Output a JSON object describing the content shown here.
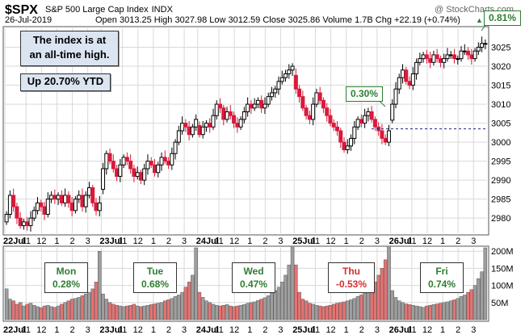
{
  "header": {
    "symbol": "$SPX",
    "name": "S&P 500 Large Cap Index",
    "exchange": "INDX",
    "watermark": "@ StockCharts.com",
    "date": "26-Jul-2019",
    "ohlc_text": "Open 3013.25  High 3027.98  Low 3012.59  Close 3025.86  Volume 1.7B  Chg +22.19 (+0.74%)",
    "change_arrow": "▲"
  },
  "callouts": {
    "all_time_high": [
      "The index is at",
      "an all-time high."
    ],
    "ytd": "Up 20.70% YTD",
    "pct_top": "0.81%",
    "pct_mid": "0.30%"
  },
  "days": [
    {
      "name": "Mon",
      "pct": "0.28%",
      "color": "#2e7d32"
    },
    {
      "name": "Tue",
      "pct": "0.68%",
      "color": "#2e7d32"
    },
    {
      "name": "Wed",
      "pct": "0.47%",
      "color": "#2e7d32"
    },
    {
      "name": "Thu",
      "pct": "-0.53%",
      "color": "#d32f2f"
    },
    {
      "name": "Fri",
      "pct": "0.74%",
      "color": "#2e7d32"
    }
  ],
  "chart_data": {
    "type": "candlestick",
    "title": "$SPX S&P 500 Large Cap Index INDX",
    "price_axis": {
      "min": 2976,
      "max": 3030,
      "ticks": [
        2980,
        2985,
        2990,
        2995,
        3000,
        3005,
        3010,
        3015,
        3020,
        3025
      ],
      "side": "right"
    },
    "volume_axis": {
      "max": 210,
      "ticks": [
        50,
        100,
        150,
        200
      ],
      "tick_labels": [
        "50M",
        "100M",
        "150M",
        "200M"
      ]
    },
    "x_tick_labels": [
      "22Jul",
      "11",
      "12",
      "1",
      "2",
      "3",
      "23Jul",
      "11",
      "12",
      "1",
      "2",
      "3",
      "24Jul",
      "11",
      "12",
      "1",
      "2",
      "3",
      "25Jul",
      "11",
      "12",
      "1",
      "2",
      "3",
      "26Jul",
      "11",
      "12",
      "1",
      "2",
      "3"
    ],
    "reference_line": {
      "value": 3003.5,
      "style": "dashed",
      "color": "#1a237e"
    },
    "colors": {
      "up": "#000000",
      "down": "#d81b3c",
      "volume_up": "#9e9e9e",
      "volume_down": "#e57373",
      "grid": "#d9d9d9"
    },
    "days": [
      {
        "day": "Mon 22Jul",
        "close_path": [
          2981,
          2986,
          2983,
          2980,
          2978,
          2979,
          2978,
          2980,
          2982,
          2984,
          2983,
          2981,
          2985,
          2986,
          2985,
          2986,
          2984,
          2986,
          2984,
          2982,
          2985,
          2986,
          2983,
          2986,
          2988,
          2984,
          2982,
          2984
        ]
      },
      {
        "day": "Tue 23Jul",
        "close_path": [
          2993,
          2997,
          2995,
          2993,
          2991,
          2994,
          2996,
          2995,
          2993,
          2991,
          2992,
          2990,
          2993,
          2995,
          2994,
          2992,
          2994,
          2996,
          2995,
          2994,
          2997,
          3000,
          3003,
          3005,
          3004,
          3002,
          3004,
          3006
        ]
      },
      {
        "day": "Wed 24Jul",
        "close_path": [
          3002,
          3004,
          3005,
          3004,
          3007,
          3010,
          3009,
          3006,
          3008,
          3007,
          3005,
          3004,
          3006,
          3008,
          3010,
          3009,
          3010,
          3011,
          3009,
          3010,
          3012,
          3013,
          3014,
          3016,
          3017,
          3018,
          3019,
          3020
        ]
      },
      {
        "day": "Thu 25Jul",
        "close_path": [
          3014,
          3012,
          3009,
          3007,
          3006,
          3010,
          3013,
          3011,
          3009,
          3007,
          3005,
          3004,
          3003,
          3000,
          2998,
          2999,
          3001,
          3004,
          3006,
          3005,
          3007,
          3008,
          3006,
          3004,
          3003,
          3001,
          3000,
          3003
        ]
      },
      {
        "day": "Fri 26Jul",
        "close_path": [
          3010,
          3014,
          3017,
          3019,
          3016,
          3015,
          3018,
          3021,
          3022,
          3023,
          3022,
          3021,
          3023,
          3022,
          3021,
          3022,
          3023,
          3023,
          3022,
          3022,
          3024,
          3024,
          3023,
          3022,
          3024,
          3025,
          3026,
          3026
        ]
      }
    ],
    "volume_millions": [
      [
        90,
        60,
        55,
        45,
        50,
        40,
        45,
        48,
        42,
        38,
        35,
        40,
        42,
        38,
        36,
        40,
        45,
        50,
        55,
        60,
        62,
        65,
        70,
        75,
        80,
        90,
        110,
        200
      ],
      [
        75,
        60,
        50,
        45,
        42,
        40,
        38,
        40,
        42,
        45,
        40,
        38,
        40,
        42,
        44,
        46,
        48,
        50,
        55,
        58,
        62,
        68,
        72,
        80,
        95,
        110,
        130,
        210
      ],
      [
        80,
        65,
        55,
        50,
        45,
        42,
        40,
        42,
        44,
        40,
        38,
        40,
        42,
        44,
        48,
        50,
        52,
        56,
        60,
        64,
        70,
        78,
        85,
        95,
        110,
        130,
        160,
        215
      ],
      [
        160,
        80,
        60,
        55,
        48,
        45,
        42,
        40,
        38,
        40,
        42,
        45,
        48,
        50,
        52,
        55,
        58,
        62,
        68,
        72,
        78,
        85,
        95,
        110,
        130,
        150,
        175,
        215
      ],
      [
        85,
        65,
        55,
        50,
        46,
        44,
        42,
        40,
        38,
        36,
        40,
        42,
        44,
        46,
        48,
        50,
        52,
        55,
        58,
        62,
        68,
        72,
        80,
        88,
        100,
        120,
        140,
        210
      ]
    ]
  }
}
